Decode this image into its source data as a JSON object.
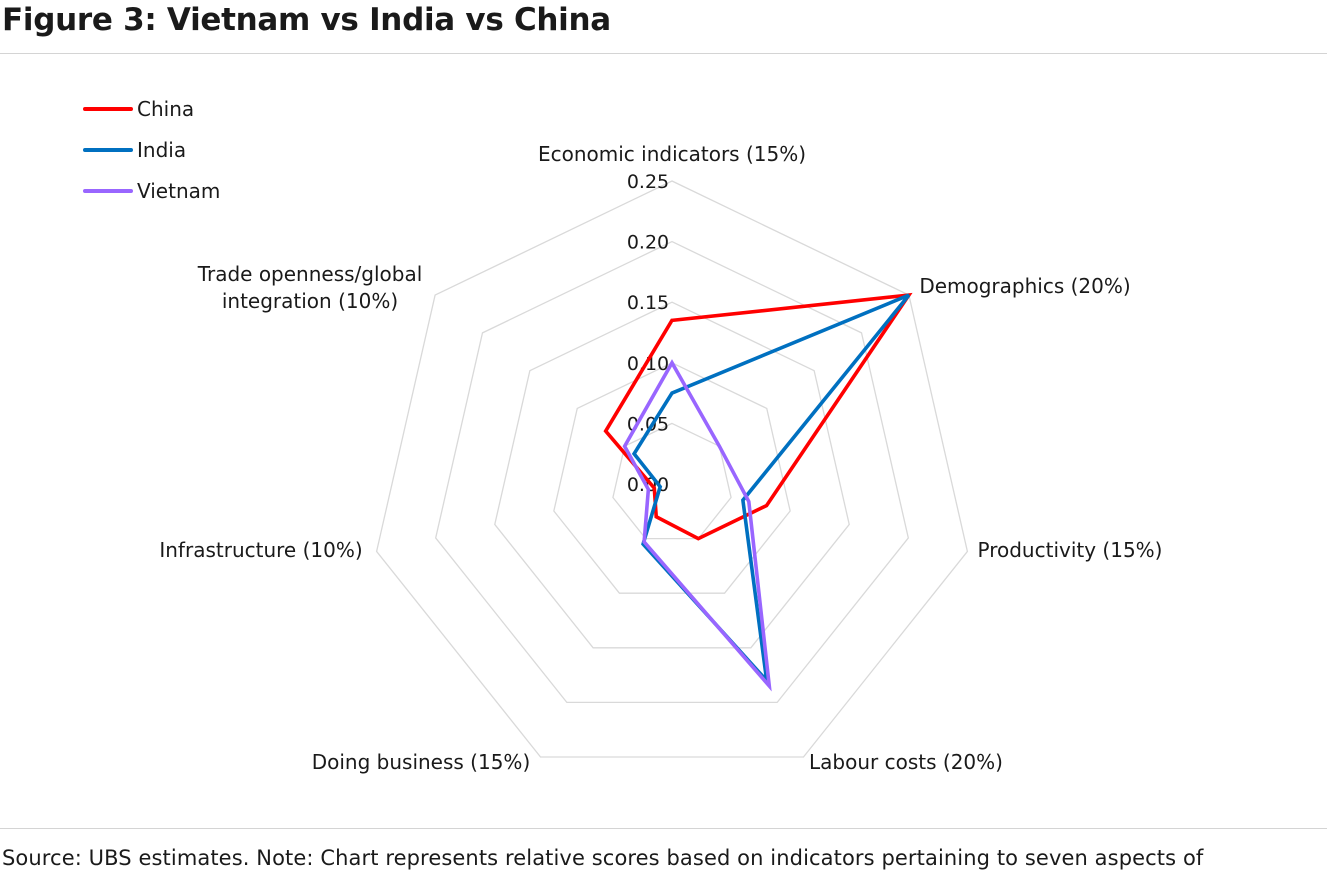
{
  "figure_title": "Figure 3: Vietnam vs India vs China",
  "source_note": "Source: UBS estimates. Note: Chart represents relative scores based on indicators pertaining to seven aspects of",
  "chart_data": {
    "type": "radar",
    "axes": [
      "Economic indicators (15%)",
      "Demographics (20%)",
      "Productivity (15%)",
      "Labour costs (20%)",
      "Doing business (15%)",
      "Infrastructure (10%)",
      "Trade openness/global integration (10%)"
    ],
    "axis_label_lines": [
      [
        "Economic indicators (15%)"
      ],
      [
        "Demographics (20%)"
      ],
      [
        "Productivity (15%)"
      ],
      [
        "Labour costs (20%)"
      ],
      [
        "Doing business (15%)"
      ],
      [
        "Infrastructure (10%)"
      ],
      [
        "Trade openness/global",
        "integration (10%)"
      ]
    ],
    "r_ticks": [
      "0.00",
      "0.05",
      "0.10",
      "0.15",
      "0.20",
      "0.25"
    ],
    "r_range": [
      0,
      0.25
    ],
    "grid": true,
    "legend_position": "top-left",
    "series": [
      {
        "name": "China",
        "color": "#ff0000",
        "values": [
          0.135,
          0.25,
          0.08,
          0.05,
          0.03,
          0.015,
          0.07
        ]
      },
      {
        "name": "India",
        "color": "#0070c0",
        "values": [
          0.075,
          0.25,
          0.06,
          0.18,
          0.055,
          0.01,
          0.04
        ]
      },
      {
        "name": "Vietnam",
        "color": "#9966ff",
        "values": [
          0.1,
          0.05,
          0.065,
          0.185,
          0.053,
          0.02,
          0.05
        ]
      }
    ]
  }
}
